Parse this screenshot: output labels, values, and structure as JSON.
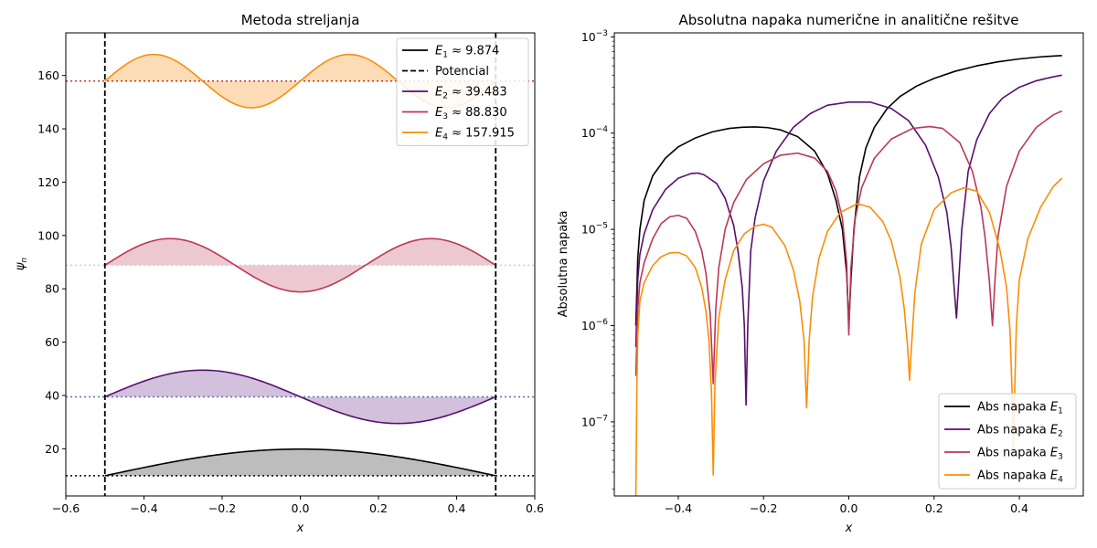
{
  "chart_data": [
    {
      "type": "line",
      "title": "Metoda streljanja",
      "xlabel": "x",
      "ylabel": "ψ_n",
      "xlim": [
        -0.6,
        0.6
      ],
      "ylim": [
        2.3,
        176
      ],
      "x_ticks": [
        -0.6,
        -0.4,
        -0.2,
        0.0,
        0.2,
        0.4,
        0.6
      ],
      "x_tick_labels": [
        "−0.6",
        "−0.4",
        "−0.2",
        "0.0",
        "0.2",
        "0.4",
        "0.6"
      ],
      "y_ticks": [
        20,
        40,
        60,
        80,
        100,
        120,
        140,
        160
      ],
      "y_tick_labels": [
        "20",
        "40",
        "60",
        "80",
        "100",
        "120",
        "140",
        "160"
      ],
      "grid": false,
      "legend_position": "top-right",
      "potential": {
        "name": "Potencial",
        "walls_x": [
          -0.5,
          0.5
        ],
        "style": "dashed",
        "color": "#000000"
      },
      "series": [
        {
          "name": "E_1 ≈ 9.874",
          "legend_sym": "E",
          "legend_sub": "1",
          "legend_rest": " ≈ 9.874",
          "energy": 9.874,
          "amplitude": 10,
          "mode": 1,
          "domain": [
            -0.5,
            0.5
          ],
          "color": "#000000",
          "fill": "#bdbdbd",
          "baseline_color": "#000000"
        },
        {
          "name": "E_2 ≈ 39.483",
          "legend_sym": "E",
          "legend_sub": "2",
          "legend_rest": " ≈ 39.483",
          "energy": 39.483,
          "amplitude": 10,
          "mode": 2,
          "domain": [
            -0.5,
            0.5
          ],
          "color": "#57106e",
          "fill": "#d2c0dc",
          "baseline_color": "#5a6ea8"
        },
        {
          "name": "E_3 ≈ 88.830",
          "legend_sym": "E",
          "legend_sub": "3",
          "legend_rest": " ≈ 88.830",
          "energy": 88.83,
          "amplitude": 10,
          "mode": 3,
          "domain": [
            -0.5,
            0.5
          ],
          "color": "#bc3754",
          "fill": "#ecc9d1",
          "baseline_color": "#cfcfcf"
        },
        {
          "name": "E_4 ≈ 157.915",
          "legend_sym": "E",
          "legend_sub": "4",
          "legend_rest": " ≈ 157.915",
          "energy": 157.915,
          "amplitude": 10,
          "mode": 4,
          "domain": [
            -0.5,
            0.5
          ],
          "color": "#f98e09",
          "fill": "#fcdcb6",
          "baseline_color": "#c0392b"
        }
      ]
    },
    {
      "type": "line",
      "title": "Absolutna napaka numerične in analitične rešitve",
      "xlabel": "x",
      "ylabel": "Absolutna napaka",
      "xlim": [
        -0.55,
        0.55
      ],
      "ylim": [
        1.7e-08,
        0.0011
      ],
      "y_scale": "log",
      "x_ticks": [
        -0.4,
        -0.2,
        0.0,
        0.2,
        0.4
      ],
      "x_tick_labels": [
        "−0.4",
        "−0.2",
        "0.0",
        "0.2",
        "0.4"
      ],
      "y_ticks": [
        1e-07,
        1e-06,
        1e-05,
        0.0001,
        0.001
      ],
      "y_tick_labels": [
        {
          "base": "10",
          "exp": "−7"
        },
        {
          "base": "10",
          "exp": "−6"
        },
        {
          "base": "10",
          "exp": "−5"
        },
        {
          "base": "10",
          "exp": "−4"
        },
        {
          "base": "10",
          "exp": "−3"
        }
      ],
      "grid": false,
      "legend_position": "bottom-right",
      "series": [
        {
          "name": "Abs napaka E_1",
          "legend_sym": "E",
          "legend_sub": "1",
          "legend_prefix": "Abs napaka ",
          "color": "#000000",
          "x": [
            -0.4995,
            -0.495,
            -0.49,
            -0.48,
            -0.46,
            -0.43,
            -0.4,
            -0.36,
            -0.32,
            -0.28,
            -0.25,
            -0.22,
            -0.19,
            -0.16,
            -0.12,
            -0.08,
            -0.05,
            -0.03,
            -0.015,
            -0.005,
            0.0,
            0.005,
            0.012,
            0.025,
            0.04,
            0.06,
            0.09,
            0.12,
            0.16,
            0.2,
            0.25,
            0.3,
            0.35,
            0.4,
            0.45,
            0.5
          ],
          "y": [
            1e-06,
            5e-06,
            1e-05,
            2e-05,
            3.6e-05,
            5.5e-05,
            7.2e-05,
            8.9e-05,
            0.000103,
            0.000112,
            0.000115,
            0.000116,
            0.000114,
            0.000108,
            9.2e-05,
            6.5e-05,
            3.8e-05,
            2e-05,
            1e-05,
            3.5e-06,
            1e-06,
            3e-06,
            1e-05,
            3.5e-05,
            7e-05,
            0.000115,
            0.00018,
            0.00024,
            0.00031,
            0.00037,
            0.00044,
            0.0005,
            0.00055,
            0.00059,
            0.00062,
            0.00064
          ]
        },
        {
          "name": "Abs napaka E_2",
          "legend_sym": "E",
          "legend_sub": "2",
          "legend_prefix": "Abs napaka ",
          "color": "#57106e",
          "x": [
            -0.4995,
            -0.495,
            -0.49,
            -0.48,
            -0.46,
            -0.43,
            -0.4,
            -0.37,
            -0.355,
            -0.34,
            -0.31,
            -0.29,
            -0.27,
            -0.26,
            -0.25,
            -0.245,
            -0.241,
            -0.237,
            -0.23,
            -0.22,
            -0.2,
            -0.17,
            -0.13,
            -0.09,
            -0.05,
            0.0,
            0.05,
            0.1,
            0.14,
            0.18,
            0.21,
            0.23,
            0.24,
            0.247,
            0.2525,
            0.258,
            0.265,
            0.28,
            0.3,
            0.33,
            0.36,
            0.4,
            0.44,
            0.48,
            0.5
          ],
          "y": [
            6e-07,
            3e-06,
            5.5e-06,
            9e-06,
            1.6e-05,
            2.6e-05,
            3.4e-05,
            3.8e-05,
            3.85e-05,
            3.7e-05,
            3e-05,
            2.1e-05,
            1.1e-05,
            6e-06,
            2.5e-06,
            1e-06,
            1.5e-07,
            1e-06,
            6e-06,
            1.3e-05,
            3.2e-05,
            6.5e-05,
            0.000115,
            0.00016,
            0.000195,
            0.00021,
            0.00021,
            0.00018,
            0.000135,
            7.5e-05,
            3.5e-05,
            1.5e-05,
            6.5e-06,
            2.5e-06,
            1.2e-06,
            3e-06,
            1e-05,
            4e-05,
            8.5e-05,
            0.00016,
            0.00023,
            0.0003,
            0.00035,
            0.000385,
            0.0004
          ]
        },
        {
          "name": "Abs napaka E_3",
          "legend_sym": "E",
          "legend_sub": "3",
          "legend_prefix": "Abs napaka ",
          "color": "#bc3754",
          "x": [
            -0.4995,
            -0.495,
            -0.49,
            -0.48,
            -0.46,
            -0.44,
            -0.42,
            -0.4,
            -0.38,
            -0.36,
            -0.345,
            -0.335,
            -0.325,
            -0.318,
            -0.312,
            -0.305,
            -0.29,
            -0.27,
            -0.24,
            -0.2,
            -0.16,
            -0.12,
            -0.08,
            -0.05,
            -0.03,
            -0.015,
            -0.005,
            0.0,
            0.005,
            0.015,
            0.03,
            0.06,
            0.1,
            0.15,
            0.19,
            0.22,
            0.26,
            0.29,
            0.31,
            0.32,
            0.33,
            0.337,
            0.343,
            0.35,
            0.37,
            0.4,
            0.44,
            0.48,
            0.5
          ],
          "y": [
            3e-07,
            1.5e-06,
            2.8e-06,
            4.5e-06,
            8e-06,
            1.15e-05,
            1.35e-05,
            1.4e-05,
            1.3e-05,
            9.5e-06,
            6e-06,
            3.5e-06,
            1.3e-06,
            2.5e-07,
            1.5e-06,
            4e-06,
            1e-05,
            1.9e-05,
            3.3e-05,
            4.8e-05,
            5.9e-05,
            6.2e-05,
            5.5e-05,
            4e-05,
            2.5e-05,
            1.3e-05,
            4.5e-06,
            8e-07,
            4e-06,
            1.3e-05,
            2.7e-05,
            5.5e-05,
            8.7e-05,
            0.000112,
            0.000117,
            0.000112,
            8e-05,
            4e-05,
            1.7e-05,
            8e-06,
            2.8e-06,
            1e-06,
            3e-06,
            8.5e-06,
            2.8e-05,
            6.5e-05,
            0.000115,
            0.000155,
            0.00017
          ]
        },
        {
          "name": "Abs napaka E_4",
          "legend_sym": "E",
          "legend_sub": "4",
          "legend_prefix": "Abs napaka ",
          "color": "#f98e09",
          "x": [
            -0.4995,
            -0.497,
            -0.495,
            -0.49,
            -0.48,
            -0.46,
            -0.44,
            -0.42,
            -0.4,
            -0.38,
            -0.36,
            -0.345,
            -0.335,
            -0.328,
            -0.322,
            -0.318,
            -0.314,
            -0.305,
            -0.29,
            -0.27,
            -0.245,
            -0.22,
            -0.2,
            -0.18,
            -0.15,
            -0.13,
            -0.115,
            -0.105,
            -0.099,
            -0.093,
            -0.085,
            -0.07,
            -0.05,
            -0.02,
            0.02,
            0.05,
            0.08,
            0.1,
            0.12,
            0.13,
            0.138,
            0.1425,
            0.147,
            0.155,
            0.17,
            0.2,
            0.24,
            0.27,
            0.3,
            0.33,
            0.355,
            0.37,
            0.378,
            0.383,
            0.386,
            0.389,
            0.393,
            0.4,
            0.42,
            0.45,
            0.48,
            0.5
          ],
          "y": [
            1.7e-08,
            2.5e-07,
            8e-07,
            1.8e-06,
            2.8e-06,
            4.2e-06,
            5.2e-06,
            5.7e-06,
            5.75e-06,
            5.3e-06,
            4e-06,
            2.5e-06,
            1.4e-06,
            7e-07,
            2e-07,
            2.8e-08,
            2.5e-07,
            1.2e-06,
            3e-06,
            6e-06,
            9e-06,
            1.08e-05,
            1.13e-05,
            1.05e-05,
            6.8e-06,
            3.8e-06,
            1.8e-06,
            7e-07,
            1.4e-07,
            7e-07,
            2e-06,
            5e-06,
            9.5e-06,
            1.5e-05,
            1.85e-05,
            1.7e-05,
            1.2e-05,
            7.5e-06,
            3.2e-06,
            1.5e-06,
            6e-07,
            2.7e-07,
            6e-07,
            2.2e-06,
            7e-06,
            1.6e-05,
            2.4e-05,
            2.7e-05,
            2.5e-05,
            1.5e-05,
            6e-06,
            2.5e-06,
            9e-07,
            2e-07,
            5e-08,
            2e-07,
            1e-06,
            3e-06,
            8e-06,
            1.7e-05,
            2.8e-05,
            3.4e-05
          ]
        }
      ]
    }
  ]
}
